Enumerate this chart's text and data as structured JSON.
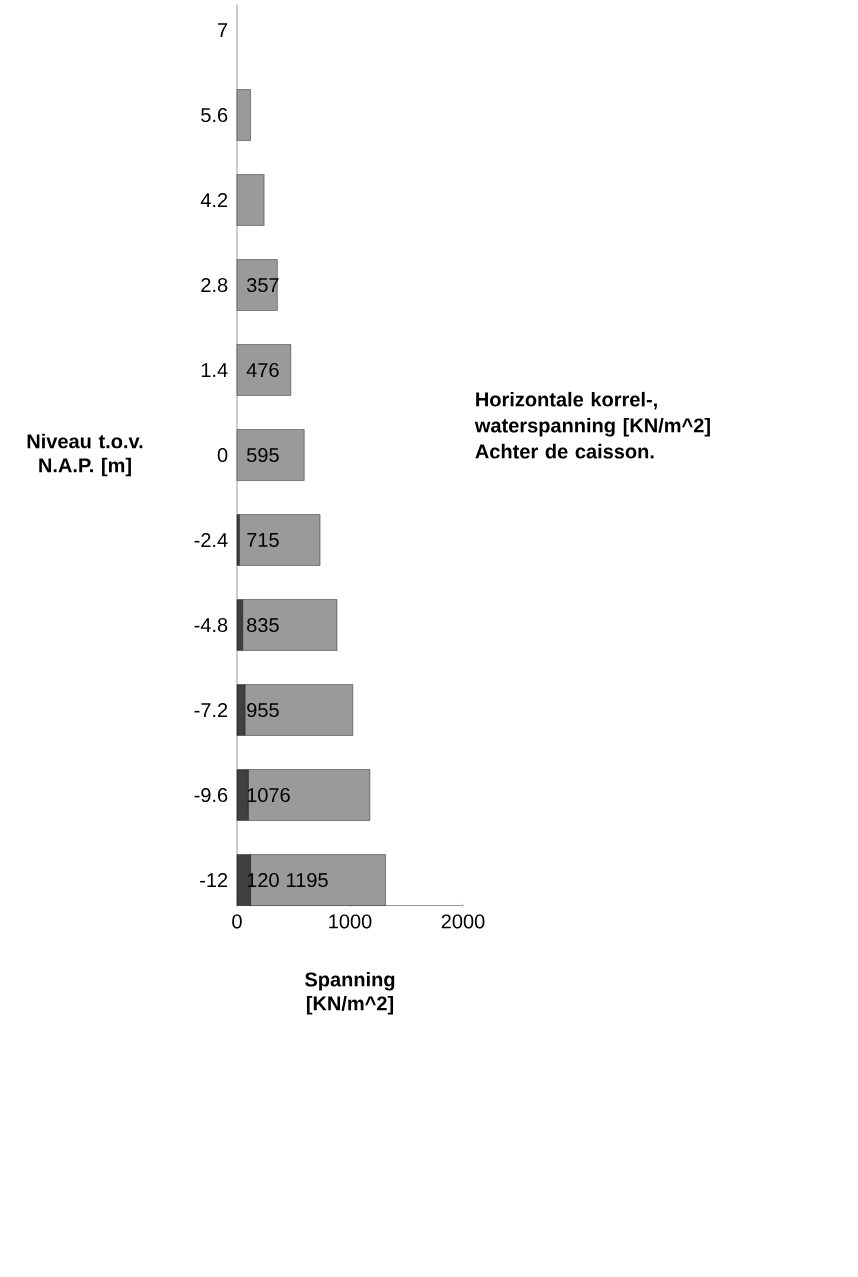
{
  "chart_data": {
    "type": "bar",
    "orientation": "horizontal",
    "stacked": true,
    "title": "Horizontale korrel-, waterspanning [KN/m^2] Achter de caisson.",
    "xlabel": "Spanning [KN/m^2]",
    "ylabel": "Niveau t.o.v. N.A.P. [m]",
    "categories": [
      "7",
      "5.6",
      "4.2",
      "2.8",
      "1.4",
      "0",
      "-2.4",
      "-4.8",
      "-7.2",
      "-9.6",
      "-12"
    ],
    "series": [
      {
        "color": "#404040",
        "values": [
          0,
          0,
          0,
          0,
          0,
          0,
          20,
          50,
          70,
          100,
          120
        ],
        "value_labels": [
          null,
          null,
          null,
          null,
          null,
          null,
          null,
          null,
          null,
          null,
          "120"
        ]
      },
      {
        "color": "#9a9a9a",
        "values": [
          0,
          120,
          240,
          357,
          476,
          595,
          715,
          835,
          955,
          1076,
          1195
        ],
        "value_labels": [
          null,
          null,
          null,
          "357",
          "476",
          "595",
          "715",
          "835",
          "955",
          "1076",
          "1195"
        ]
      }
    ],
    "xlim": [
      0,
      2000
    ],
    "xticks": [
      0,
      1000,
      2000
    ]
  }
}
